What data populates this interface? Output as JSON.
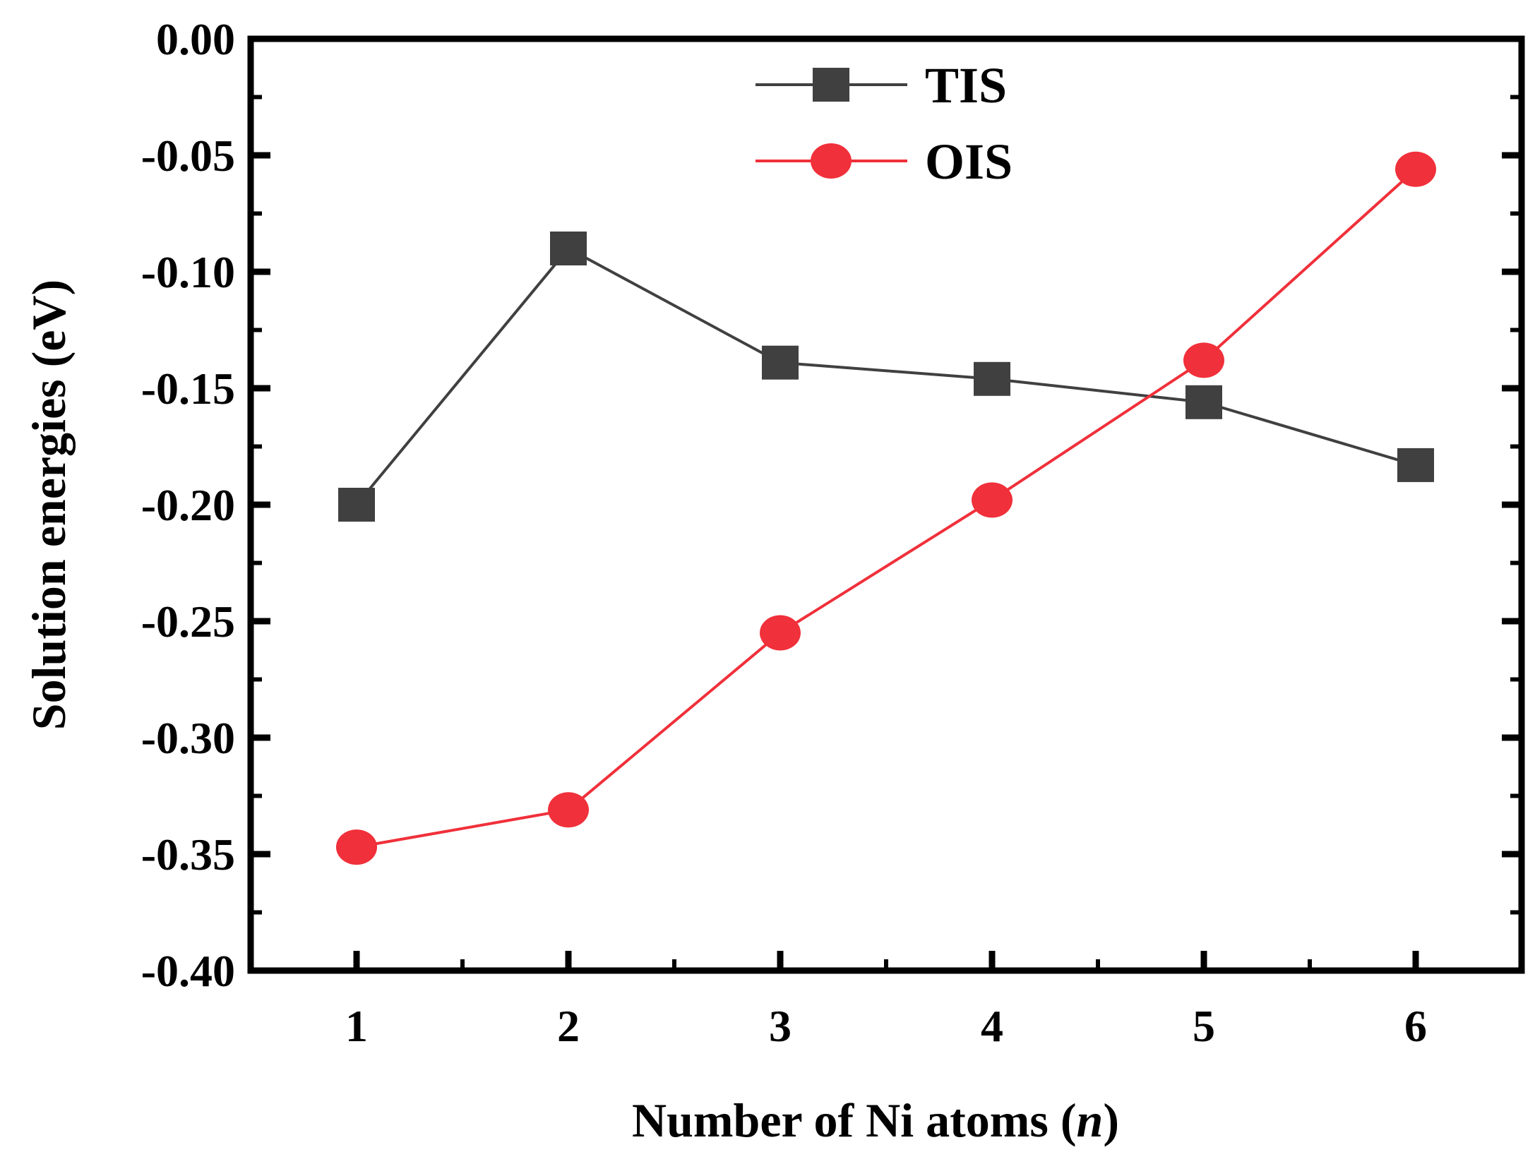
{
  "chart_data": {
    "type": "line",
    "title": "",
    "xlabel_prefix": "Number of Ni atoms (",
    "xlabel_var": "n",
    "xlabel_suffix": ")",
    "ylabel": "Solution energies (eV)",
    "x": [
      1,
      2,
      3,
      4,
      5,
      6
    ],
    "xlim": [
      0.5,
      6.5
    ],
    "ylim": [
      -0.4,
      0.0
    ],
    "y_ticks": [
      0.0,
      -0.05,
      -0.1,
      -0.15,
      -0.2,
      -0.25,
      -0.3,
      -0.35,
      -0.4
    ],
    "y_tick_labels": [
      "0.00",
      "-0.05",
      "-0.10",
      "-0.15",
      "-0.20",
      "-0.25",
      "-0.30",
      "-0.35",
      "-0.40"
    ],
    "x_tick_labels": [
      "1",
      "2",
      "3",
      "4",
      "5",
      "6"
    ],
    "legend_position": "top-center",
    "series": [
      {
        "name": "TIS",
        "marker": "square",
        "color": "#404040",
        "values": [
          -0.2,
          -0.09,
          -0.139,
          -0.146,
          -0.156,
          -0.183
        ]
      },
      {
        "name": "OIS",
        "marker": "circle",
        "color": "#f0303a",
        "values": [
          -0.347,
          -0.331,
          -0.255,
          -0.198,
          -0.138,
          -0.056
        ]
      }
    ]
  }
}
